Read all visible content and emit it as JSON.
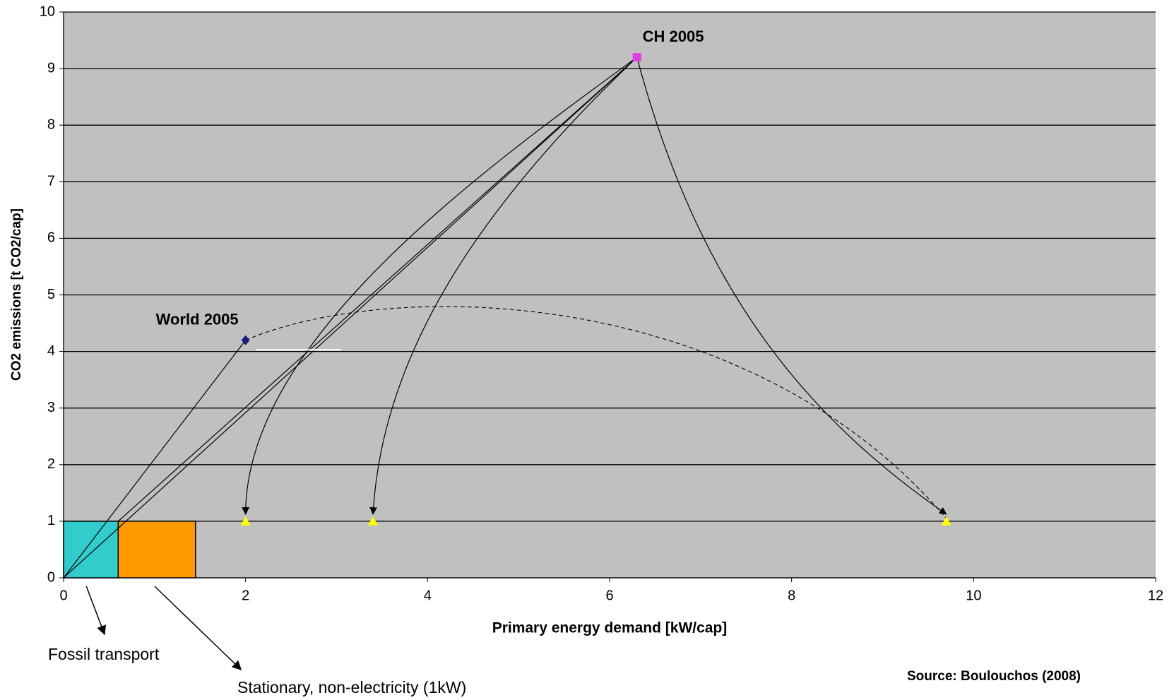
{
  "chart_data": {
    "type": "scatter",
    "x_label": "Primary energy demand [kW/cap]",
    "y_label": "CO2 emissions [t CO2/cap]",
    "xlim": [
      0,
      12
    ],
    "ylim": [
      0,
      10
    ],
    "xticks": [
      0,
      2,
      4,
      6,
      8,
      10,
      12
    ],
    "yticks": [
      0,
      1,
      2,
      3,
      4,
      5,
      6,
      7,
      8,
      9,
      10
    ],
    "grid": true,
    "plot_color": "#c0c0c0",
    "points": [
      {
        "label": "World 2005",
        "x": 2,
        "y": 4.2,
        "color": "#1a1a80",
        "marker": "diamond"
      },
      {
        "label": "CH 2005",
        "x": 6.3,
        "y": 9.2,
        "color": "#e040e0",
        "marker": "square"
      }
    ],
    "targets": {
      "x": [
        2,
        3.4,
        9.7
      ],
      "y": [
        1,
        1,
        1
      ],
      "color": "#ffff00"
    },
    "boxes": [
      {
        "label": "Fossil transport",
        "x": [
          0,
          0.6
        ],
        "y": [
          0,
          1
        ],
        "color": "#33cccc"
      },
      {
        "label": "Stationary, non-electricity (1kW)",
        "x": [
          0.6,
          1.45
        ],
        "y": [
          0,
          1
        ],
        "color": "#ff9900"
      }
    ],
    "source": "Source: Boulouchos (2008)"
  }
}
